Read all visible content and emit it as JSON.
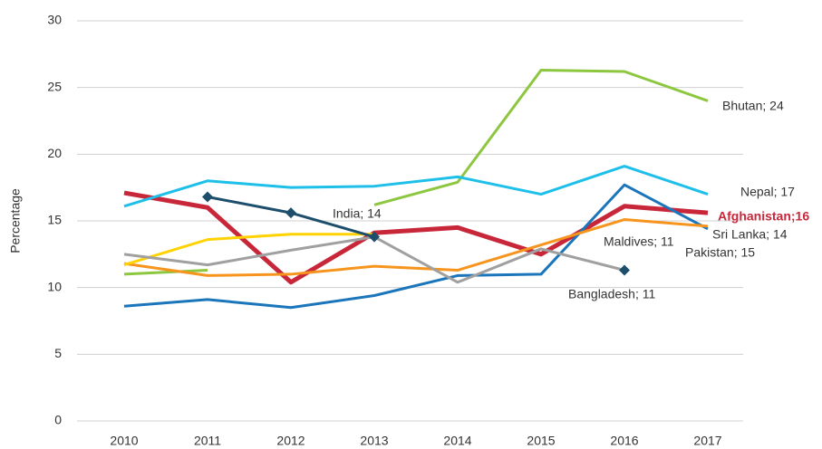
{
  "chart_data": {
    "type": "line",
    "y_label": "Percentage",
    "categories": [
      "2010",
      "2011",
      "2012",
      "2013",
      "2014",
      "2015",
      "2016",
      "2017"
    ],
    "ylim": [
      0,
      30
    ],
    "yticks": [
      0,
      5,
      10,
      15,
      20,
      25,
      30
    ],
    "grid": true,
    "series": [
      {
        "color": "#c8273a",
        "values": [
          17.1,
          16.0,
          10.4,
          14.1,
          14.5,
          12.5,
          16.1,
          15.6
        ]
      },
      {
        "color": "#8dc63f",
        "values": [
          11.0,
          11.3,
          null,
          16.2,
          17.9,
          26.3,
          26.2,
          24.0
        ]
      },
      {
        "color": "#1ebfe8",
        "values": [
          16.1,
          18.0,
          17.5,
          17.6,
          18.3,
          17.0,
          19.1,
          17.0
        ]
      },
      {
        "color": "#1a75bb",
        "values": [
          8.6,
          9.1,
          8.5,
          9.4,
          10.9,
          11.0,
          17.7,
          14.4
        ]
      },
      {
        "color": "#f7941d",
        "values": [
          11.8,
          10.9,
          11.0,
          11.6,
          11.3,
          13.2,
          15.1,
          14.6
        ]
      },
      {
        "color": "#ffd200",
        "values": [
          11.7,
          13.6,
          14.0,
          14.0,
          null,
          null,
          null,
          null
        ]
      },
      {
        "color": "#a0a0a0",
        "values": [
          12.5,
          11.7,
          12.8,
          13.8,
          10.4,
          12.9,
          11.3,
          null
        ]
      },
      {
        "color": "#1d4e6b",
        "marker": "diamond",
        "values": [
          null,
          16.8,
          15.6,
          13.8,
          null,
          null,
          11.3,
          null
        ]
      }
    ],
    "annotations": [
      {
        "text": "Bhutan; 24"
      },
      {
        "text": "Nepal; 17"
      },
      {
        "text": "Afghanistan;16",
        "color": "#c8273a"
      },
      {
        "text": "Sri Lanka; 14"
      },
      {
        "text": "India; 14"
      },
      {
        "text": "Maldives; 11"
      },
      {
        "text": "Pakistan; 15"
      },
      {
        "text": "Bangladesh; 11"
      }
    ]
  }
}
